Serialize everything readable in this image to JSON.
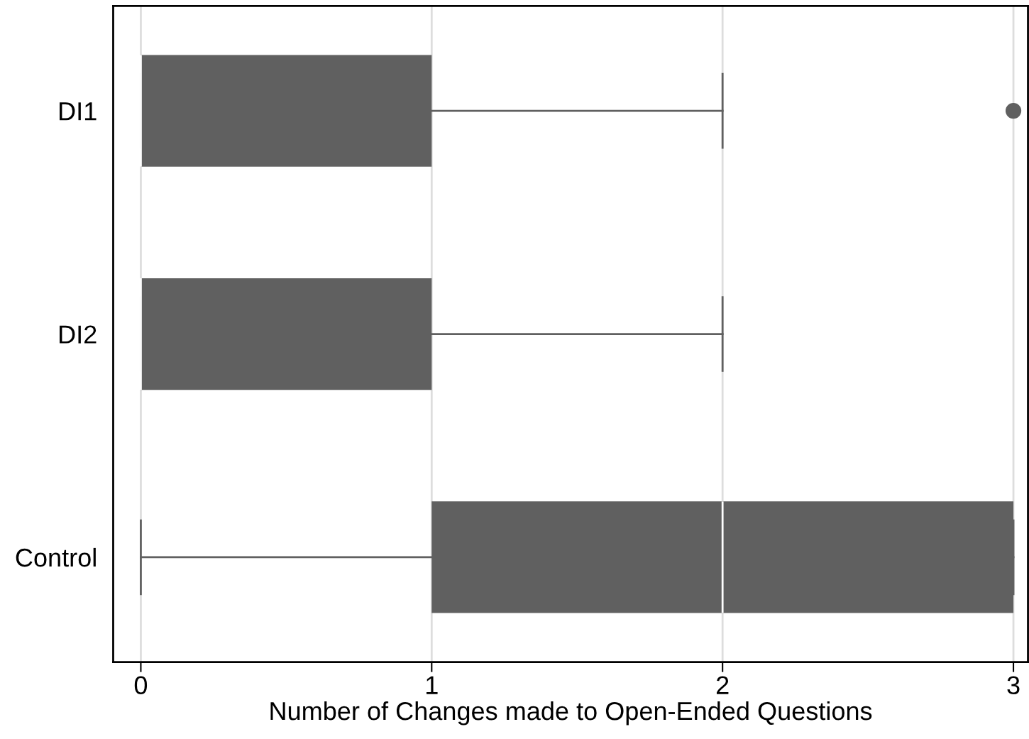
{
  "chart_data": {
    "type": "box",
    "orientation": "horizontal",
    "xlabel": "Number of Changes made to Open-Ended Questions",
    "categories": [
      "DI1",
      "DI2",
      "Control"
    ],
    "boxes": [
      {
        "low": 0,
        "q1": 0,
        "median": 0,
        "q3": 1,
        "high": 2,
        "outliers": [
          3
        ]
      },
      {
        "low": 0,
        "q1": 0,
        "median": 0,
        "q3": 1,
        "high": 2
      },
      {
        "low": 0,
        "q1": 1,
        "median": 2,
        "q3": 3,
        "high": 3
      }
    ],
    "color": "#606060",
    "xlim": [
      -0.095,
      3.05
    ],
    "xticks": [
      0,
      1,
      2,
      3
    ],
    "grid": "x"
  }
}
